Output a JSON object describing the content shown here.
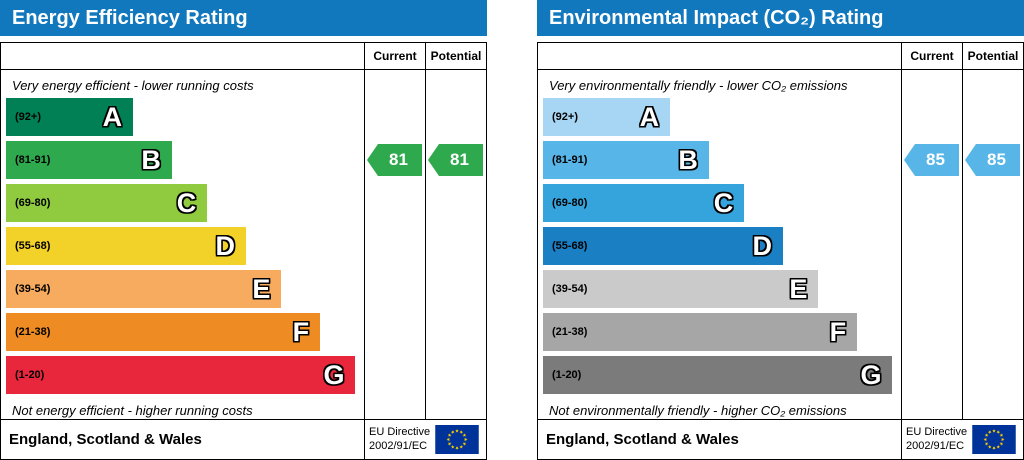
{
  "chart_data": [
    {
      "type": "bar",
      "title": "Energy Efficiency Rating",
      "categories": [
        "A (92+)",
        "B (81-91)",
        "C (69-80)",
        "D (55-68)",
        "E (39-54)",
        "F (21-38)",
        "G (1-20)"
      ],
      "series": [
        {
          "name": "Current",
          "value": 81,
          "band": "B"
        },
        {
          "name": "Potential",
          "value": 81,
          "band": "B"
        }
      ],
      "top_note": "Very energy efficient - lower running costs",
      "bottom_note": "Not energy efficient - higher running costs",
      "region": "England, Scotland & Wales",
      "directive": "EU Directive 2002/91/EC"
    },
    {
      "type": "bar",
      "title": "Environmental Impact (CO₂) Rating",
      "categories": [
        "A (92+)",
        "B (81-91)",
        "C (69-80)",
        "D (55-68)",
        "E (39-54)",
        "F (21-38)",
        "G (1-20)"
      ],
      "series": [
        {
          "name": "Current",
          "value": 85,
          "band": "B"
        },
        {
          "name": "Potential",
          "value": 85,
          "band": "B"
        }
      ],
      "top_note": "Very environmentally friendly - lower CO₂ emissions",
      "bottom_note": "Not environmentally friendly - higher CO₂ emissions",
      "region": "England, Scotland & Wales",
      "directive": "EU Directive 2002/91/EC"
    }
  ],
  "charts": [
    {
      "title": "Energy Efficiency Rating",
      "header_color": "#1278be",
      "col_current": "Current",
      "col_potential": "Potential",
      "top_note": "Very energy efficient - lower running costs",
      "bottom_note": "Not energy efficient - higher running costs",
      "bands": [
        {
          "range": "(92+)",
          "letter": "A",
          "color": "#008054",
          "width": "36%"
        },
        {
          "range": "(81-91)",
          "letter": "B",
          "color": "#2ea94d",
          "width": "47%"
        },
        {
          "range": "(69-80)",
          "letter": "C",
          "color": "#8fca3f",
          "width": "57%"
        },
        {
          "range": "(55-68)",
          "letter": "D",
          "color": "#f2d129",
          "width": "68%"
        },
        {
          "range": "(39-54)",
          "letter": "E",
          "color": "#f7ab5e",
          "width": "78%"
        },
        {
          "range": "(21-38)",
          "letter": "F",
          "color": "#ee8b22",
          "width": "89%"
        },
        {
          "range": "(1-20)",
          "letter": "G",
          "color": "#e9273c",
          "width": "99%"
        }
      ],
      "current": {
        "value": "81",
        "band": "B",
        "row_index": 1,
        "color": "#2ea94d"
      },
      "potential": {
        "value": "81",
        "band": "B",
        "row_index": 1,
        "color": "#2ea94d"
      },
      "footer_region": "England, Scotland & Wales",
      "directive_line1": "EU Directive",
      "directive_line2": "2002/91/EC"
    },
    {
      "title": "Environmental Impact (CO₂) Rating",
      "header_color": "#1278be",
      "col_current": "Current",
      "col_potential": "Potential",
      "top_note": "Very environmentally friendly - lower CO₂ emissions",
      "bottom_note": "Not environmentally friendly - higher CO₂ emissions",
      "bands": [
        {
          "range": "(92+)",
          "letter": "A",
          "color": "#a6d6f3",
          "width": "36%"
        },
        {
          "range": "(81-91)",
          "letter": "B",
          "color": "#58b5e7",
          "width": "47%"
        },
        {
          "range": "(69-80)",
          "letter": "C",
          "color": "#35a3dc",
          "width": "57%"
        },
        {
          "range": "(55-68)",
          "letter": "D",
          "color": "#1b7fc3",
          "width": "68%"
        },
        {
          "range": "(39-54)",
          "letter": "E",
          "color": "#cacaca",
          "width": "78%"
        },
        {
          "range": "(21-38)",
          "letter": "F",
          "color": "#a6a6a6",
          "width": "89%"
        },
        {
          "range": "(1-20)",
          "letter": "G",
          "color": "#7b7b7b",
          "width": "99%"
        }
      ],
      "current": {
        "value": "85",
        "band": "B",
        "row_index": 1,
        "color": "#58b5e7"
      },
      "potential": {
        "value": "85",
        "band": "B",
        "row_index": 1,
        "color": "#58b5e7"
      },
      "footer_region": "England, Scotland & Wales",
      "directive_line1": "EU Directive",
      "directive_line2": "2002/91/EC"
    }
  ],
  "eu_flag": {
    "background": "#003399",
    "star_color": "#ffcc00"
  }
}
